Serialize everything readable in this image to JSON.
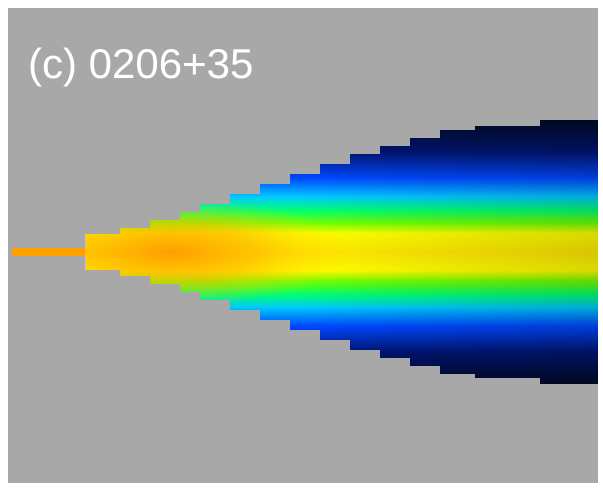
{
  "label": "(c) 0206+35"
}
